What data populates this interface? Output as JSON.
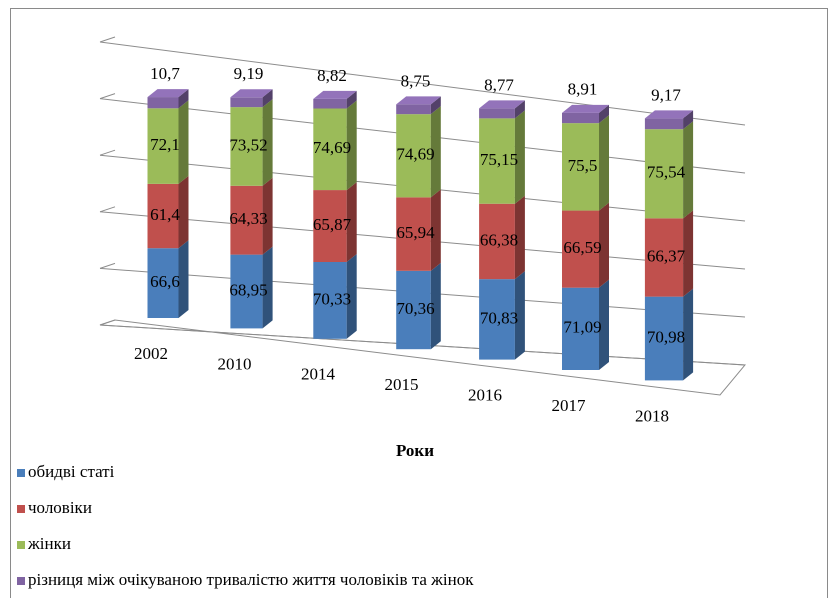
{
  "chart_data": {
    "type": "bar3d_stacked",
    "categories": [
      "2002",
      "2010",
      "2014",
      "2015",
      "2016",
      "2017",
      "2018"
    ],
    "series": [
      {
        "name": "обидві статі",
        "color": "#4a7ebb",
        "values": [
          66.6,
          68.95,
          70.33,
          70.36,
          70.83,
          71.09,
          70.98
        ],
        "value_labels": [
          "66,6",
          "68,95",
          "70,33",
          "70,36",
          "70,83",
          "71,09",
          "70,98"
        ]
      },
      {
        "name": "чоловіки",
        "color": "#c0504d",
        "values": [
          61.4,
          64.33,
          65.87,
          65.94,
          66.38,
          66.59,
          66.37
        ],
        "value_labels": [
          "61,4",
          "64,33",
          "65,87",
          "65,94",
          "66,38",
          "66,59",
          "66,37"
        ]
      },
      {
        "name": "жінки",
        "color": "#9bbb59",
        "values": [
          72.1,
          73.52,
          74.69,
          74.69,
          75.15,
          75.5,
          75.54
        ],
        "value_labels": [
          "72,1",
          "73,52",
          "74,69",
          "74,69",
          "75,15",
          "75,5",
          "75,54"
        ]
      },
      {
        "name": "різниця між очікуваною тривалістю життя чоловіків та жінок",
        "color": "#8064a2",
        "values": [
          10.7,
          9.19,
          8.82,
          8.75,
          8.77,
          8.91,
          9.17
        ],
        "value_labels": [
          "10,7",
          "9,19",
          "8,82",
          "8,75",
          "8,77",
          "8,91",
          "9,17"
        ]
      }
    ],
    "x_label": "Роки",
    "ylim": [
      0,
      250
    ],
    "yticks": [
      0,
      50,
      100,
      150,
      200,
      250
    ],
    "grid": true,
    "legend": "bottom"
  }
}
